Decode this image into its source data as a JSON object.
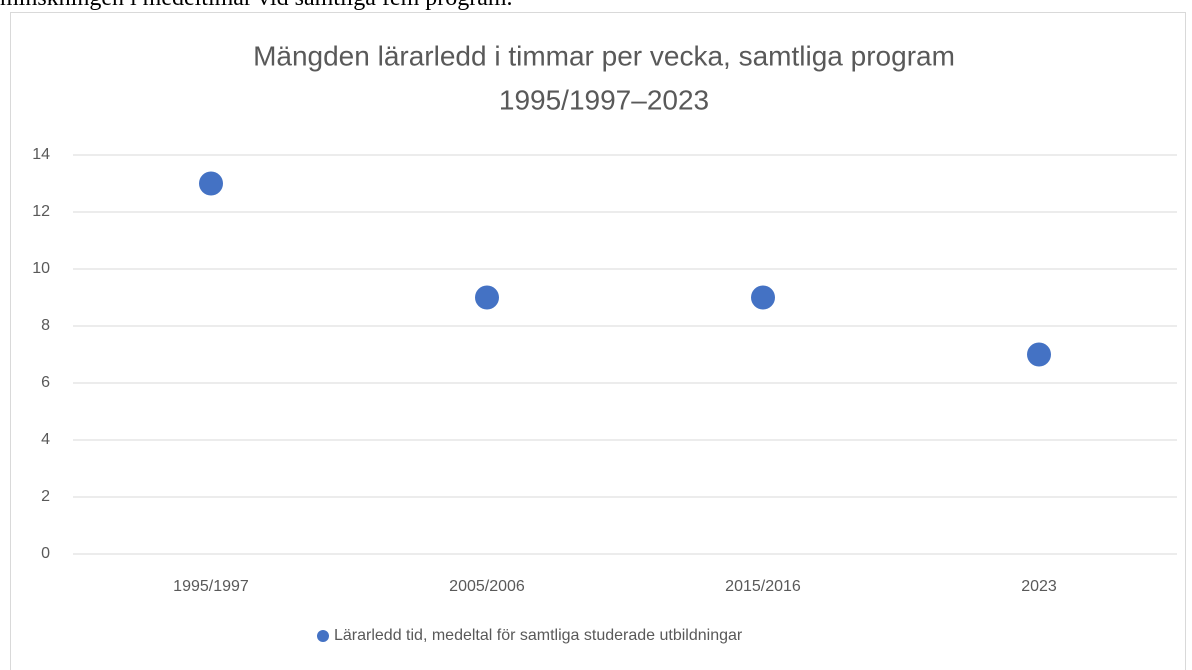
{
  "document": {
    "text_above": "minskningen i medeltimar vid samtliga fem program."
  },
  "chart_data": {
    "type": "scatter",
    "title": [
      "Mängden lärarledd i timmar per vecka, samtliga program",
      "1995/1997–2023"
    ],
    "categories": [
      "1995/1997",
      "2005/2006",
      "2015/2016",
      "2023"
    ],
    "series": [
      {
        "name": "Lärarledd tid, medeltal för samtliga studerade utbildningar",
        "color": "#4472c4",
        "values": [
          13,
          9,
          9,
          7
        ]
      }
    ],
    "ylim": [
      0,
      14
    ],
    "yticks": [
      0,
      2,
      4,
      6,
      8,
      10,
      12,
      14
    ],
    "grid": true,
    "legend": "bottom"
  }
}
